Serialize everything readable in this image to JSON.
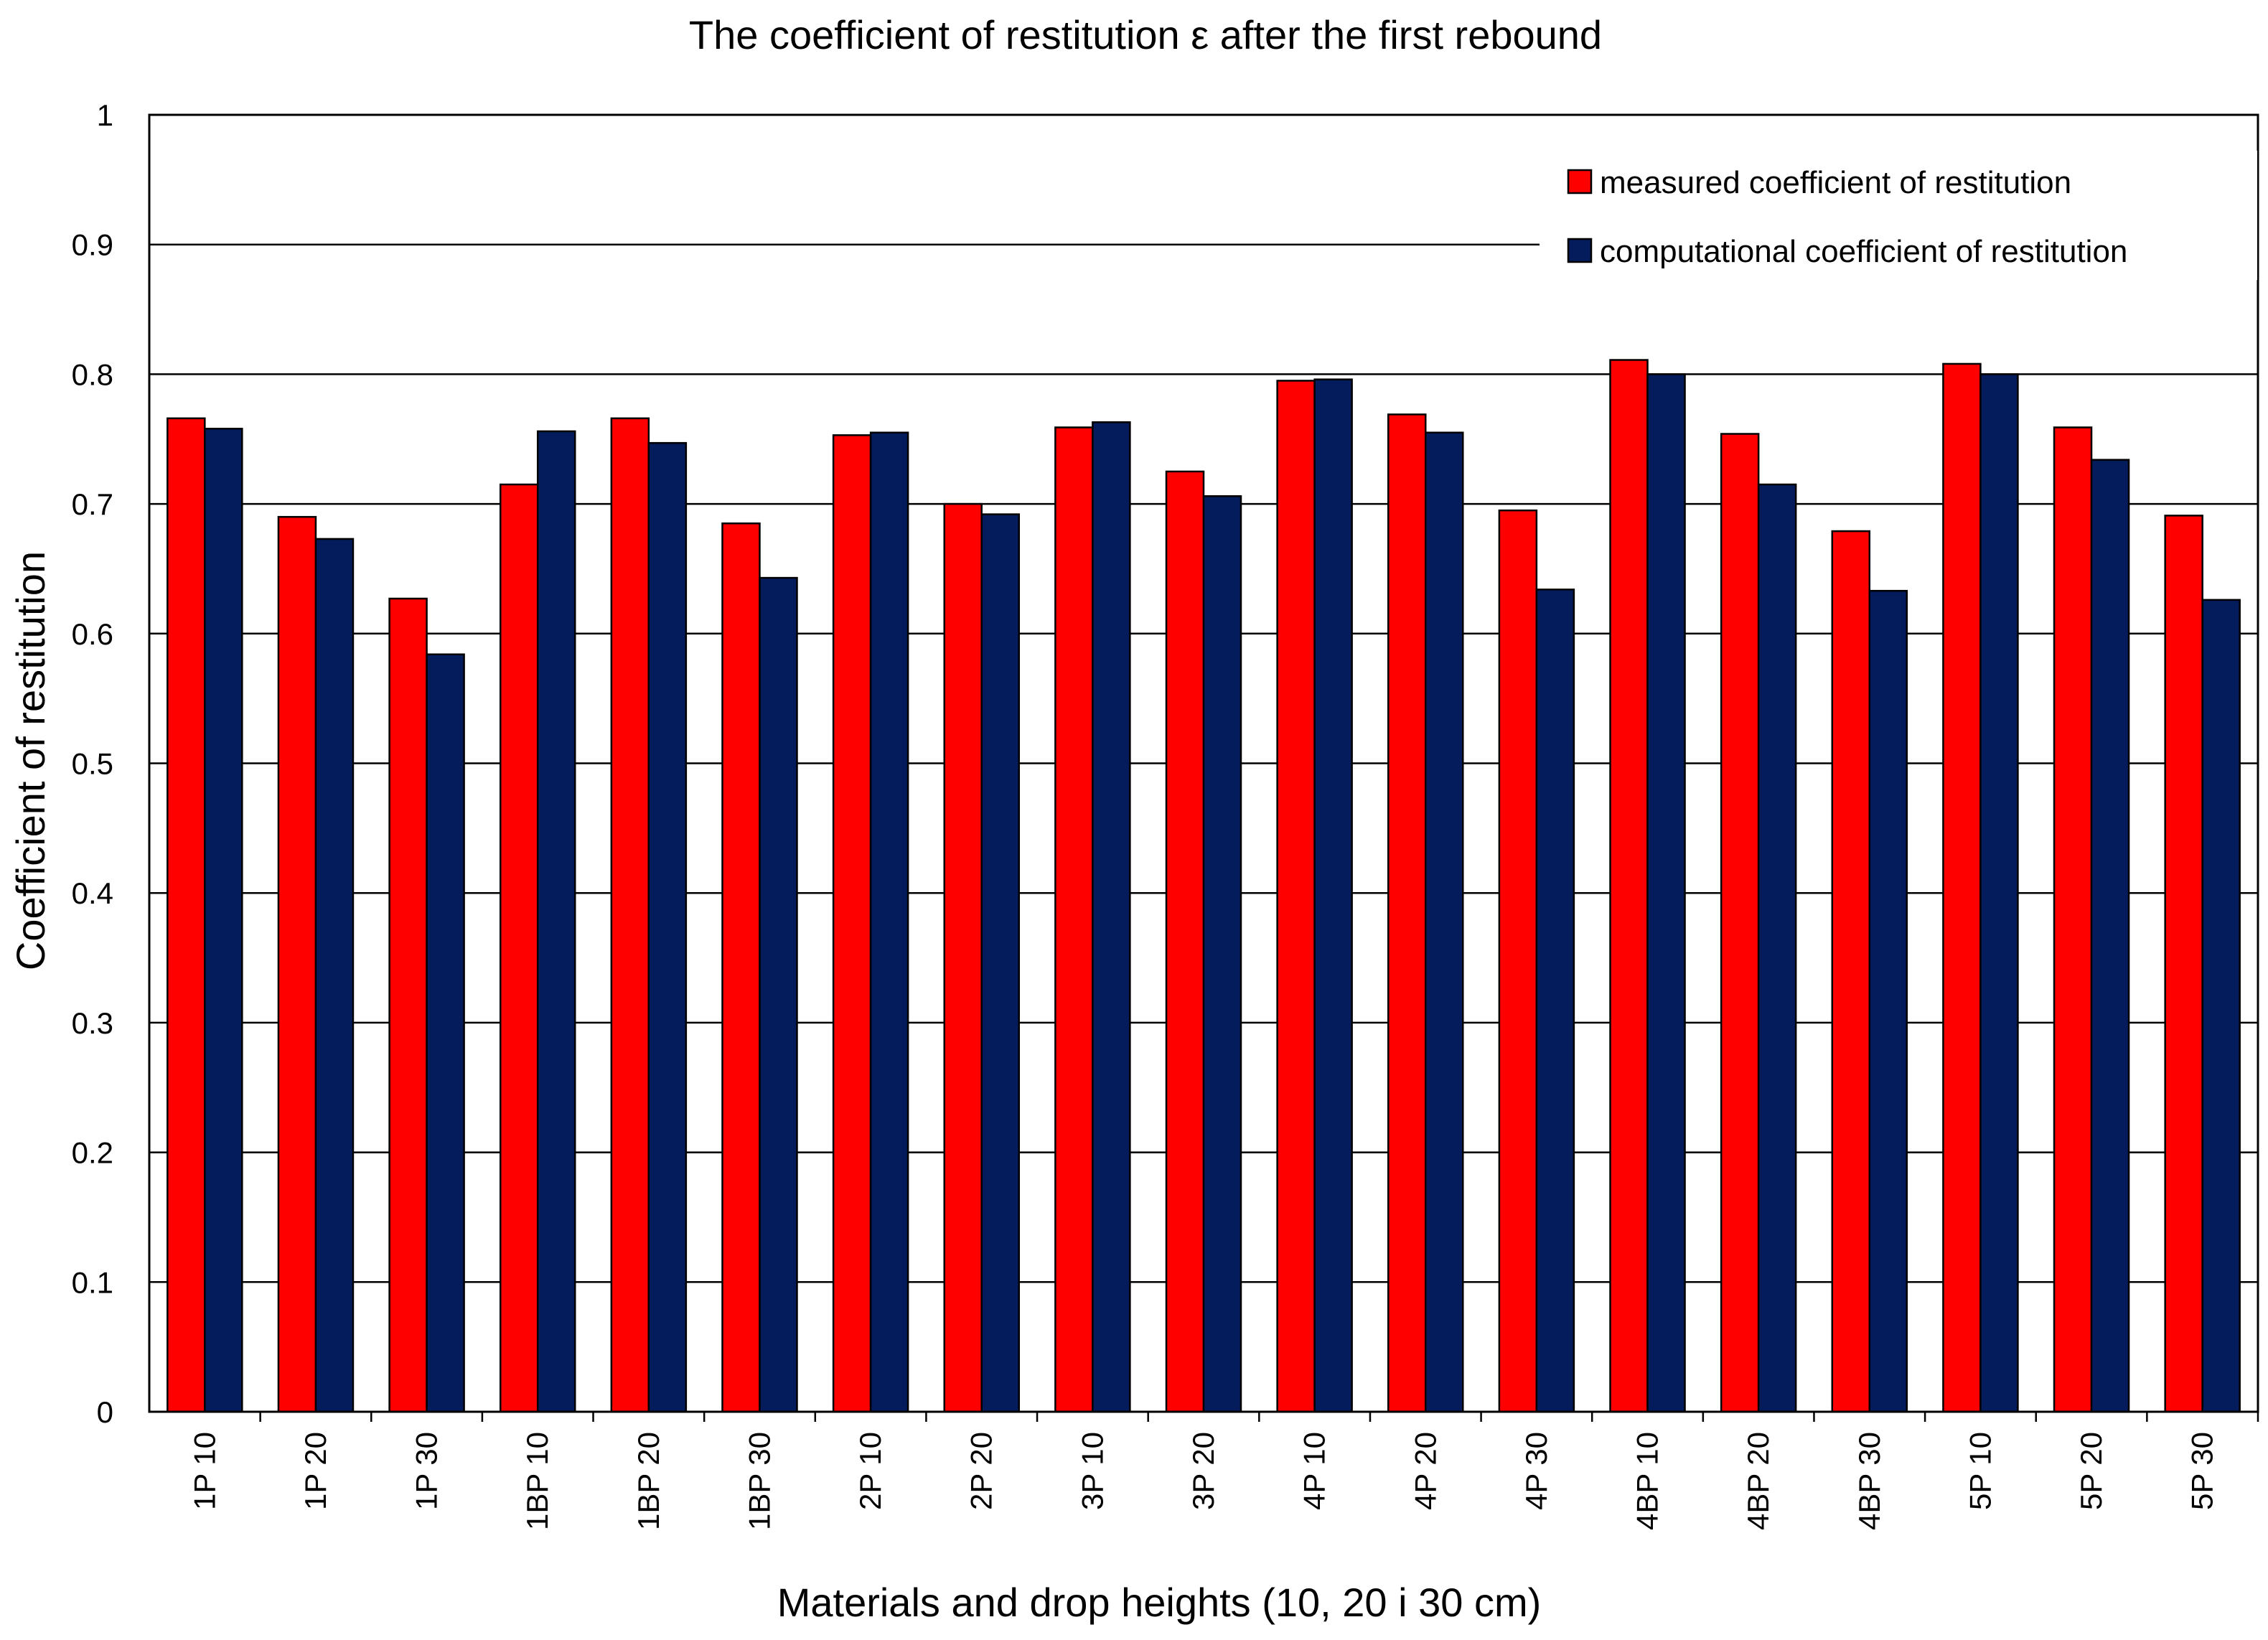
{
  "chart_data": {
    "type": "bar",
    "title": "The coefficient of restitution ε after the first rebound",
    "xlabel": "Materials and drop heights (10, 20 i 30 cm)",
    "ylabel": "Coefficient of restitution",
    "ylim": [
      0,
      1
    ],
    "yticks": [
      0,
      0.1,
      0.2,
      0.3,
      0.4,
      0.5,
      0.6,
      0.7,
      0.8,
      0.9,
      1
    ],
    "ytick_labels": [
      "0",
      "0.1",
      "0.2",
      "0.3",
      "0.4",
      "0.5",
      "0.6",
      "0.7",
      "0.8",
      "0.9",
      "1"
    ],
    "grid": true,
    "legend_position": "top-right",
    "categories": [
      "1P 10",
      "1P 20",
      "1P 30",
      "1BP 10",
      "1BP 20",
      "1BP 30",
      "2P 10",
      "2P 20",
      "3P 10",
      "3P 20",
      "4P 10",
      "4P 20",
      "4P 30",
      "4BP 10",
      "4BP 20",
      "4BP 30",
      "5P 10",
      "5P 20",
      "5P 30"
    ],
    "series": [
      {
        "name": "measured coefficient of restitution",
        "color": "#ff0000",
        "values": [
          0.766,
          0.69,
          0.627,
          0.715,
          0.766,
          0.685,
          0.753,
          0.7,
          0.759,
          0.725,
          0.795,
          0.769,
          0.695,
          0.811,
          0.754,
          0.679,
          0.808,
          0.759,
          0.691
        ]
      },
      {
        "name": "computational coefficient of restitution",
        "color": "#041c5c",
        "values": [
          0.758,
          0.673,
          0.584,
          0.756,
          0.747,
          0.643,
          0.755,
          0.692,
          0.763,
          0.706,
          0.796,
          0.755,
          0.634,
          0.8,
          0.715,
          0.633,
          0.8,
          0.734,
          0.626
        ]
      }
    ]
  }
}
